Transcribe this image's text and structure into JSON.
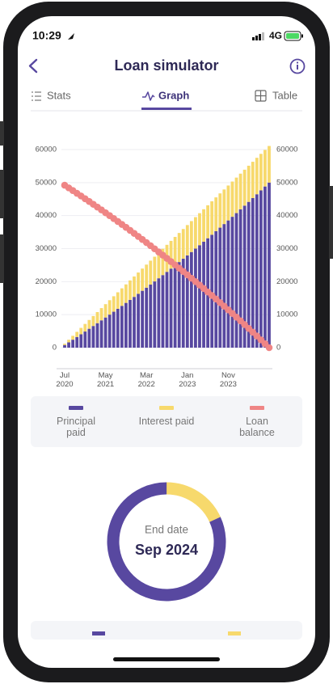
{
  "status_bar": {
    "time": "10:29",
    "network": "4G"
  },
  "header": {
    "title": "Loan simulator"
  },
  "tabs": [
    "Stats",
    "Graph",
    "Table"
  ],
  "chart_data": {
    "type": "bar",
    "stacked": true,
    "grid": true,
    "legend_position": "bottom",
    "categories": [
      "Jul 2020",
      null,
      null,
      null,
      null,
      null,
      null,
      null,
      null,
      null,
      "May 2021",
      null,
      null,
      null,
      null,
      null,
      null,
      null,
      null,
      null,
      "Mar 2022",
      null,
      null,
      null,
      null,
      null,
      null,
      null,
      null,
      null,
      "Jan 2023",
      null,
      null,
      null,
      null,
      null,
      null,
      null,
      null,
      null,
      "Nov 2023",
      null,
      null,
      null,
      null,
      null,
      null,
      null,
      null,
      null,
      null
    ],
    "ylim": [
      0,
      60000
    ],
    "yticks": [
      0,
      10000,
      20000,
      30000,
      40000,
      50000,
      60000
    ],
    "series": [
      {
        "name": "Principal paid",
        "type": "bar",
        "color": "#5848a0",
        "values": [
          798,
          1602,
          2413,
          3230,
          4054,
          4884,
          5721,
          6565,
          7416,
          8273,
          9137,
          10008,
          10886,
          11771,
          12663,
          13562,
          14468,
          15382,
          16303,
          17231,
          18167,
          19110,
          20061,
          21019,
          21985,
          22959,
          23941,
          24931,
          25928,
          26933,
          27946,
          28968,
          29998,
          31036,
          32082,
          33137,
          34200,
          35272,
          36352,
          37441,
          38539,
          39645,
          40760,
          41884,
          43017,
          44159,
          45310,
          46470,
          47640,
          48819,
          50000
        ]
      },
      {
        "name": "Interest paid",
        "type": "bar",
        "color": "#f7d96c",
        "values": [
          400,
          794,
          1181,
          1562,
          1936,
          2304,
          2665,
          3019,
          3366,
          3707,
          4041,
          4368,
          4688,
          5001,
          5307,
          5606,
          5898,
          6182,
          6459,
          6729,
          6991,
          7246,
          7493,
          7733,
          7965,
          8189,
          8405,
          8613,
          8814,
          9007,
          9192,
          9368,
          9536,
          9696,
          9848,
          9991,
          10126,
          10252,
          10370,
          10479,
          10579,
          10671,
          10754,
          10828,
          10893,
          10949,
          10996,
          11034,
          11062,
          11081,
          11090
        ]
      },
      {
        "name": "Loan balance",
        "type": "line",
        "color": "#ef8585",
        "values": [
          49202,
          48398,
          47587,
          46770,
          45946,
          45116,
          44279,
          43435,
          42584,
          41727,
          40863,
          39992,
          39114,
          38229,
          37337,
          36438,
          35532,
          34618,
          33697,
          32769,
          31833,
          30890,
          29939,
          28981,
          28015,
          27041,
          26059,
          25069,
          24072,
          23067,
          22054,
          21032,
          20002,
          18964,
          17918,
          16863,
          15800,
          14728,
          13648,
          12559,
          11461,
          10355,
          9240,
          8116,
          6983,
          5841,
          4690,
          3530,
          2360,
          1181,
          0
        ]
      }
    ]
  },
  "summary": {
    "label": "End date",
    "value": "Sep 2024"
  }
}
